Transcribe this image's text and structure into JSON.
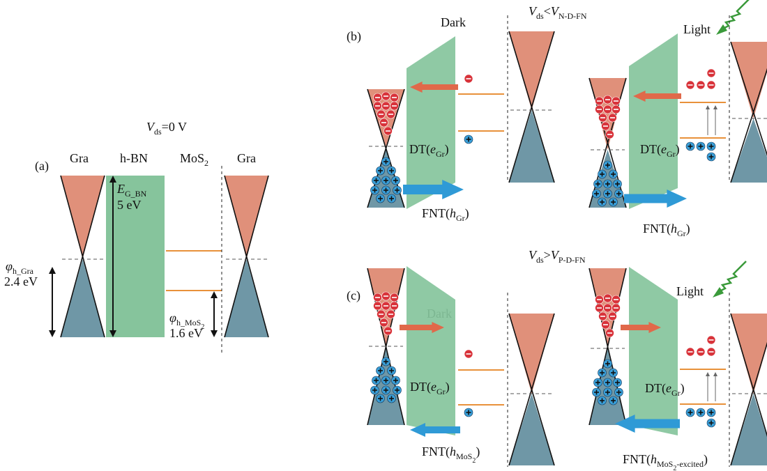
{
  "panel_a": {
    "label": "(a)",
    "bias": [
      "V",
      "ds",
      "=0 V"
    ],
    "columns": {
      "gra_left": "Gra",
      "hbn": "h-BN",
      "mos2": [
        "MoS",
        "2"
      ],
      "gra_right": "Gra"
    },
    "bandgap": {
      "symbol": [
        "E",
        "G_BN"
      ],
      "value": "5 eV"
    },
    "phi_gra": {
      "symbol": [
        "φ",
        "h_Gra"
      ],
      "value": "2.4 eV"
    },
    "phi_mos2": {
      "symbol": [
        "φ",
        "h_MoS",
        "2"
      ],
      "value": "1.6 eV"
    }
  },
  "panel_b": {
    "label": "(b)",
    "bias": [
      "V",
      "ds",
      "<",
      "V",
      "N-D-FN"
    ],
    "dark": {
      "condition": "Dark",
      "dt": [
        "DT(",
        "e",
        "Gr",
        ")"
      ],
      "fnt": [
        "FNT(",
        "h",
        "Gr",
        ")"
      ]
    },
    "light": {
      "condition": "Light",
      "dt": [
        "DT(",
        "e",
        "Gr",
        ")"
      ],
      "fnt": [
        "FNT(",
        "h",
        "Gr",
        ")"
      ]
    }
  },
  "panel_c": {
    "label": "(c)",
    "bias": [
      "V",
      "ds",
      ">",
      "V",
      "P-D-FN"
    ],
    "dark": {
      "condition": "Dark",
      "dt": [
        "DT(",
        "e",
        "Gr",
        ")"
      ],
      "fnt": [
        "FNT(",
        "h",
        "MoS",
        "2",
        ")"
      ]
    },
    "light": {
      "condition": "Light",
      "dt": [
        "DT(",
        "e",
        "Gr",
        ")"
      ],
      "fnt": [
        "FNT(",
        "h",
        "MoS",
        "2",
        "-excited",
        ")"
      ]
    }
  }
}
